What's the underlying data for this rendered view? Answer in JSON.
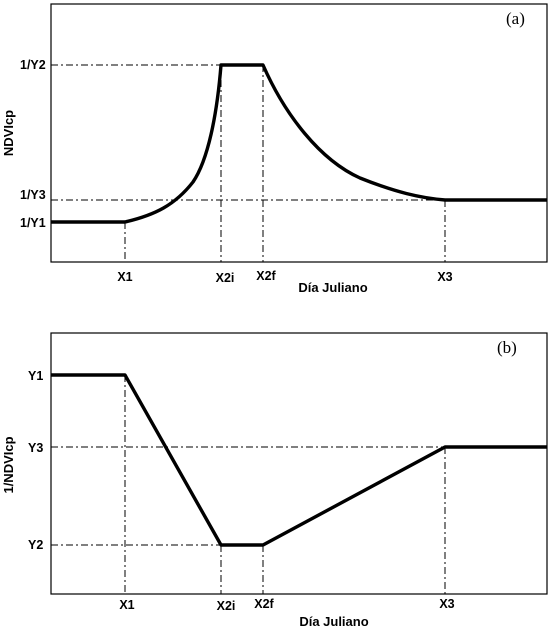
{
  "panel_a": {
    "label": "(a)",
    "ylabel": "NDVIcp",
    "xlabel": "Día Juliano",
    "yticks": {
      "y2": "1/Y2",
      "y3": "1/Y3",
      "y1": "1/Y1"
    },
    "xticks": {
      "x1": "X1",
      "x2i": "X2i",
      "x2f": "X2f",
      "x3": "X3"
    }
  },
  "panel_b": {
    "label": "(b)",
    "ylabel": "1/NDVIcp",
    "xlabel": "Día Juliano",
    "yticks": {
      "y1": "Y1",
      "y3": "Y3",
      "y2": "Y2"
    },
    "xticks": {
      "x1": "X1",
      "x2i": "X2i",
      "x2f": "X2f",
      "x3": "X3"
    }
  }
}
